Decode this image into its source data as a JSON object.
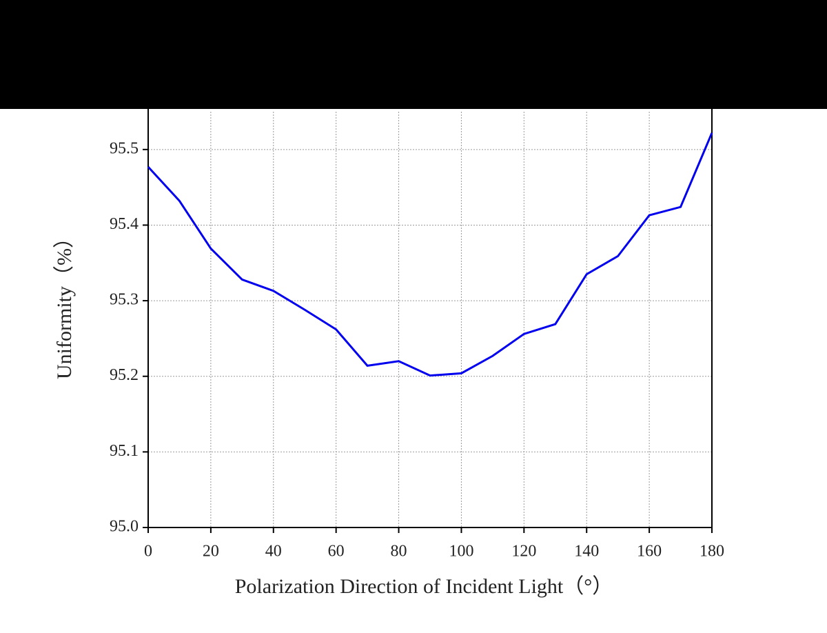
{
  "chart_data": {
    "type": "line",
    "x_label": "Polarization Direction of Incident Light（°）",
    "y_label": "Uniformity（%）",
    "x": [
      0,
      10,
      20,
      30,
      40,
      50,
      60,
      70,
      80,
      90,
      100,
      110,
      120,
      130,
      140,
      150,
      160,
      170,
      180
    ],
    "series": [
      {
        "name": "Uniformity",
        "color": "#0000ee",
        "values": [
          95.477,
          95.432,
          95.369,
          95.328,
          95.313,
          95.288,
          95.262,
          95.214,
          95.22,
          95.201,
          95.204,
          95.227,
          95.256,
          95.269,
          95.335,
          95.359,
          95.413,
          95.424,
          95.522
        ]
      }
    ],
    "xlim": [
      0,
      180
    ],
    "xticks": [
      0,
      20,
      40,
      60,
      80,
      100,
      120,
      140,
      160,
      180
    ],
    "ylim": [
      95.0,
      95.55
    ],
    "yticks": [
      {
        "value": 95,
        "label": "95.0"
      },
      95.1,
      95.2,
      95.3,
      95.4,
      95.5
    ],
    "grid": true
  }
}
